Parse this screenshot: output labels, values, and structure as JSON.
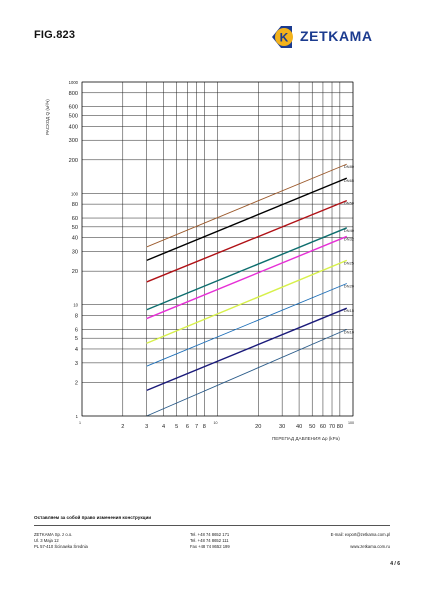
{
  "header": {
    "fig_label": "FIG.823",
    "brand": "ZETKAMA",
    "logo_letter": "K",
    "brand_color": "#1b3b8f",
    "logo_accent": "#f2b21c"
  },
  "chart_data": {
    "type": "line",
    "title": "",
    "xlabel": "ПЕРЕПАД ДАВЛЕНИЯ Δp (kPa)",
    "ylabel": "РАСХОД Q (м³/ч)",
    "xscale": "log",
    "yscale": "log",
    "xlim": [
      1,
      100
    ],
    "ylim": [
      1,
      1000
    ],
    "grid": true,
    "x_ticks": [
      1,
      2,
      3,
      4,
      5,
      6,
      7,
      8,
      10,
      20,
      30,
      40,
      50,
      60,
      70,
      80,
      100
    ],
    "x_tick_labels": [
      "1",
      "2",
      "3",
      "4",
      "5",
      "6",
      "7",
      "8",
      "10",
      "20",
      "30",
      "40",
      "50",
      "60",
      "70",
      "80",
      "100"
    ],
    "y_ticks": [
      1,
      2,
      3,
      4,
      5,
      6,
      8,
      10,
      20,
      30,
      40,
      50,
      60,
      80,
      100,
      200,
      300,
      400,
      500,
      600,
      800,
      1000
    ],
    "y_tick_labels": [
      "1",
      "2",
      "3",
      "4",
      "5",
      "6",
      "8",
      "10",
      "20",
      "30",
      "40",
      "50",
      "60",
      "80",
      "100",
      "200",
      "300",
      "400",
      "500",
      "600",
      "800",
      "1000"
    ],
    "series": [
      {
        "name": "DN80",
        "color": "#9c5a2c",
        "x": [
          3,
          90
        ],
        "y": [
          33,
          183
        ]
      },
      {
        "name": "DN65",
        "color": "#000000",
        "x": [
          3,
          90
        ],
        "y": [
          25,
          137
        ]
      },
      {
        "name": "DN50",
        "color": "#b01116",
        "x": [
          3,
          90
        ],
        "y": [
          16,
          86
        ]
      },
      {
        "name": "DN40",
        "color": "#0d6e6e",
        "x": [
          3,
          90
        ],
        "y": [
          9,
          49
        ]
      },
      {
        "name": "DN32",
        "color": "#e62fd6",
        "x": [
          3,
          90
        ],
        "y": [
          7.5,
          41
        ]
      },
      {
        "name": "DN25",
        "color": "#d7f04a",
        "x": [
          3,
          90
        ],
        "y": [
          4.5,
          25
        ]
      },
      {
        "name": "DN20",
        "color": "#1e6fb8",
        "x": [
          3,
          90
        ],
        "y": [
          2.8,
          15.5
        ]
      },
      {
        "name": "DN15",
        "color": "#1a1a7a",
        "x": [
          3,
          90
        ],
        "y": [
          1.7,
          9.3
        ]
      },
      {
        "name": "DN10",
        "color": "#2b5c8a",
        "x": [
          3,
          90
        ],
        "y": [
          1.0,
          6.0
        ]
      }
    ]
  },
  "footer": {
    "note": "Оставляем за собой право изменения конструкции",
    "company": "ZETKAMA Sp. z o.o.",
    "street": "Ul. 3 Maja 12",
    "city": "PL 57-410 Ścinawka Średnia",
    "tel1": "Tel. +48 74 8652 171",
    "tel2": "Tel. +48 74 8652 111",
    "fax": "Fax +48 74 8652 199",
    "email": "E-mail: export@zetkama.com.pl",
    "web": "www.zetkama.com.ru",
    "page": "4 / 6"
  }
}
